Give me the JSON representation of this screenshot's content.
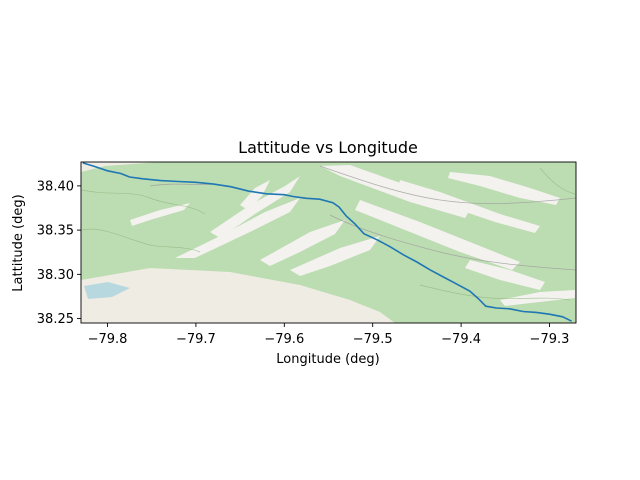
{
  "chart_data": {
    "type": "line",
    "title": "Lattitude vs Longitude",
    "xlabel": "Longitude (deg)",
    "ylabel": "Lattitude (deg)",
    "xlim": [
      -79.83,
      -79.27
    ],
    "ylim": [
      38.245,
      38.427
    ],
    "xticks": [
      -79.8,
      -79.7,
      -79.6,
      -79.5,
      -79.4,
      -79.3
    ],
    "xtick_labels": [
      "−79.8",
      "−79.7",
      "−79.6",
      "−79.5",
      "−79.4",
      "−79.3"
    ],
    "yticks": [
      38.25,
      38.3,
      38.35,
      38.4
    ],
    "ytick_labels": [
      "38.25",
      "38.30",
      "38.35",
      "38.40"
    ],
    "background": "openstreetmap terrain tiles",
    "series": [
      {
        "color": "#1f77b4",
        "points": [
          [
            -79.828,
            38.426
          ],
          [
            -79.815,
            38.422
          ],
          [
            -79.8,
            38.417
          ],
          [
            -79.785,
            38.414
          ],
          [
            -79.775,
            38.41
          ],
          [
            -79.76,
            38.408
          ],
          [
            -79.74,
            38.406
          ],
          [
            -79.72,
            38.405
          ],
          [
            -79.7,
            38.404
          ],
          [
            -79.68,
            38.402
          ],
          [
            -79.66,
            38.399
          ],
          [
            -79.64,
            38.394
          ],
          [
            -79.62,
            38.391
          ],
          [
            -79.6,
            38.39
          ],
          [
            -79.59,
            38.388
          ],
          [
            -79.575,
            38.386
          ],
          [
            -79.56,
            38.385
          ],
          [
            -79.545,
            38.381
          ],
          [
            -79.538,
            38.376
          ],
          [
            -79.53,
            38.366
          ],
          [
            -79.52,
            38.357
          ],
          [
            -79.51,
            38.346
          ],
          [
            -79.495,
            38.339
          ],
          [
            -79.48,
            38.331
          ],
          [
            -79.465,
            38.322
          ],
          [
            -79.45,
            38.314
          ],
          [
            -79.435,
            38.305
          ],
          [
            -79.42,
            38.297
          ],
          [
            -79.405,
            38.289
          ],
          [
            -79.39,
            38.281
          ],
          [
            -79.38,
            38.272
          ],
          [
            -79.372,
            38.264
          ],
          [
            -79.36,
            38.262
          ],
          [
            -79.345,
            38.261
          ],
          [
            -79.33,
            38.258
          ],
          [
            -79.315,
            38.257
          ],
          [
            -79.3,
            38.255
          ],
          [
            -79.285,
            38.252
          ],
          [
            -79.275,
            38.247
          ]
        ]
      }
    ]
  },
  "colors": {
    "line": "#1f77b4",
    "map_green": "#bcdcb1",
    "map_land": "#efece4",
    "map_ridge": "#f3f2ef",
    "map_water": "#aad3df"
  }
}
